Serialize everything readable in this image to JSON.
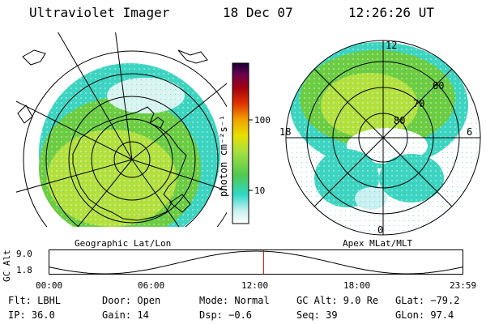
{
  "header": {
    "title": "Ultraviolet Imager",
    "date": "18 Dec 07",
    "time": "12:26:26 UT"
  },
  "colorbar": {
    "unit_label": "photon cm⁻²s⁻¹",
    "ticks": [
      "100",
      "10"
    ]
  },
  "maps": {
    "geographic_label": "Geographic Lat/Lon",
    "apex_label": "Apex MLat/MLT",
    "apex_lat_labels": [
      "60",
      "70",
      "80"
    ],
    "apex_mlt_labels": [
      "12",
      "18",
      "6",
      "0"
    ]
  },
  "altitude_plot": {
    "ylabel": "GC Alt",
    "yticks": [
      "9.0",
      "1.8"
    ],
    "time_ticks": [
      "00:00",
      "06:00",
      "12:00",
      "18:00",
      "23:59"
    ],
    "current_marker_hour": 12.44,
    "marker_color": "#dd0000"
  },
  "info": {
    "row1": {
      "filter": "Flt: LBHL",
      "door": "Door: Open",
      "mode": "Mode: Normal",
      "gc_alt": "GC Alt: 9.0 Re",
      "glat": "GLat: −79.2"
    },
    "row2": {
      "ip": "IP: 36.0",
      "gain": "Gain: 14",
      "dsp": "Dsp:   −0.6",
      "seq": "Seq: 39",
      "glon": "GLon:  97.4"
    }
  },
  "colors": {
    "scale": [
      "#ffffff",
      "#c8f0f0",
      "#30d8c8",
      "#50c850",
      "#a8e040",
      "#e8e000",
      "#f0a000",
      "#e03000",
      "#a00010",
      "#6a0050",
      "#1a0033"
    ]
  }
}
